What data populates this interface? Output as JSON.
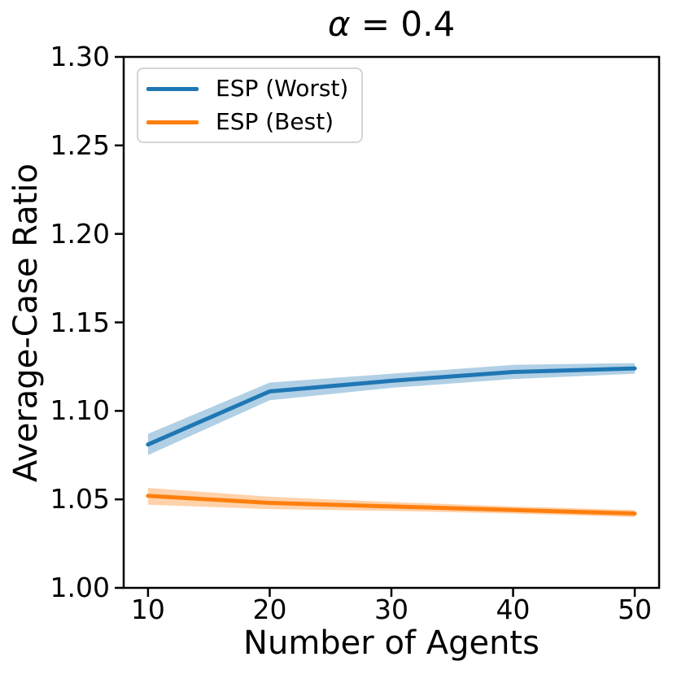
{
  "figure": {
    "title": "α = 0.4",
    "title_math": "α",
    "title_rest": " = 0.4"
  },
  "chart_data": {
    "type": "line",
    "title": "α = 0.4",
    "xlabel": "Number of Agents",
    "ylabel": "Average-Case Ratio",
    "xlim": [
      8,
      52
    ],
    "ylim": [
      1.0,
      1.3
    ],
    "grid": false,
    "legend_position": "upper left",
    "legend_border_color": "#d4d4d4",
    "x": [
      10,
      20,
      30,
      40,
      50
    ],
    "xticks": {
      "values": [
        10,
        20,
        30,
        40,
        50
      ],
      "labels": [
        "10",
        "20",
        "30",
        "40",
        "50"
      ]
    },
    "yticks": {
      "values": [
        1.0,
        1.05,
        1.1,
        1.15,
        1.2,
        1.25,
        1.3
      ],
      "labels": [
        "1.00",
        "1.05",
        "1.10",
        "1.15",
        "1.20",
        "1.25",
        "1.30"
      ]
    },
    "series": [
      {
        "name": "ESP (Worst)",
        "color": "#1f77b4",
        "values": [
          1.081,
          1.111,
          1.117,
          1.122,
          1.124
        ],
        "band_upper": [
          1.087,
          1.116,
          1.121,
          1.126,
          1.127
        ],
        "band_lower": [
          1.075,
          1.106,
          1.113,
          1.118,
          1.121
        ],
        "band_opacity": 0.35
      },
      {
        "name": "ESP (Best)",
        "color": "#ff7f0e",
        "values": [
          1.052,
          1.048,
          1.046,
          1.044,
          1.042
        ],
        "band_upper": [
          1.0565,
          1.0515,
          1.0485,
          1.046,
          1.044
        ],
        "band_lower": [
          1.047,
          1.0445,
          1.0435,
          1.042,
          1.04
        ],
        "band_opacity": 0.35
      }
    ]
  }
}
